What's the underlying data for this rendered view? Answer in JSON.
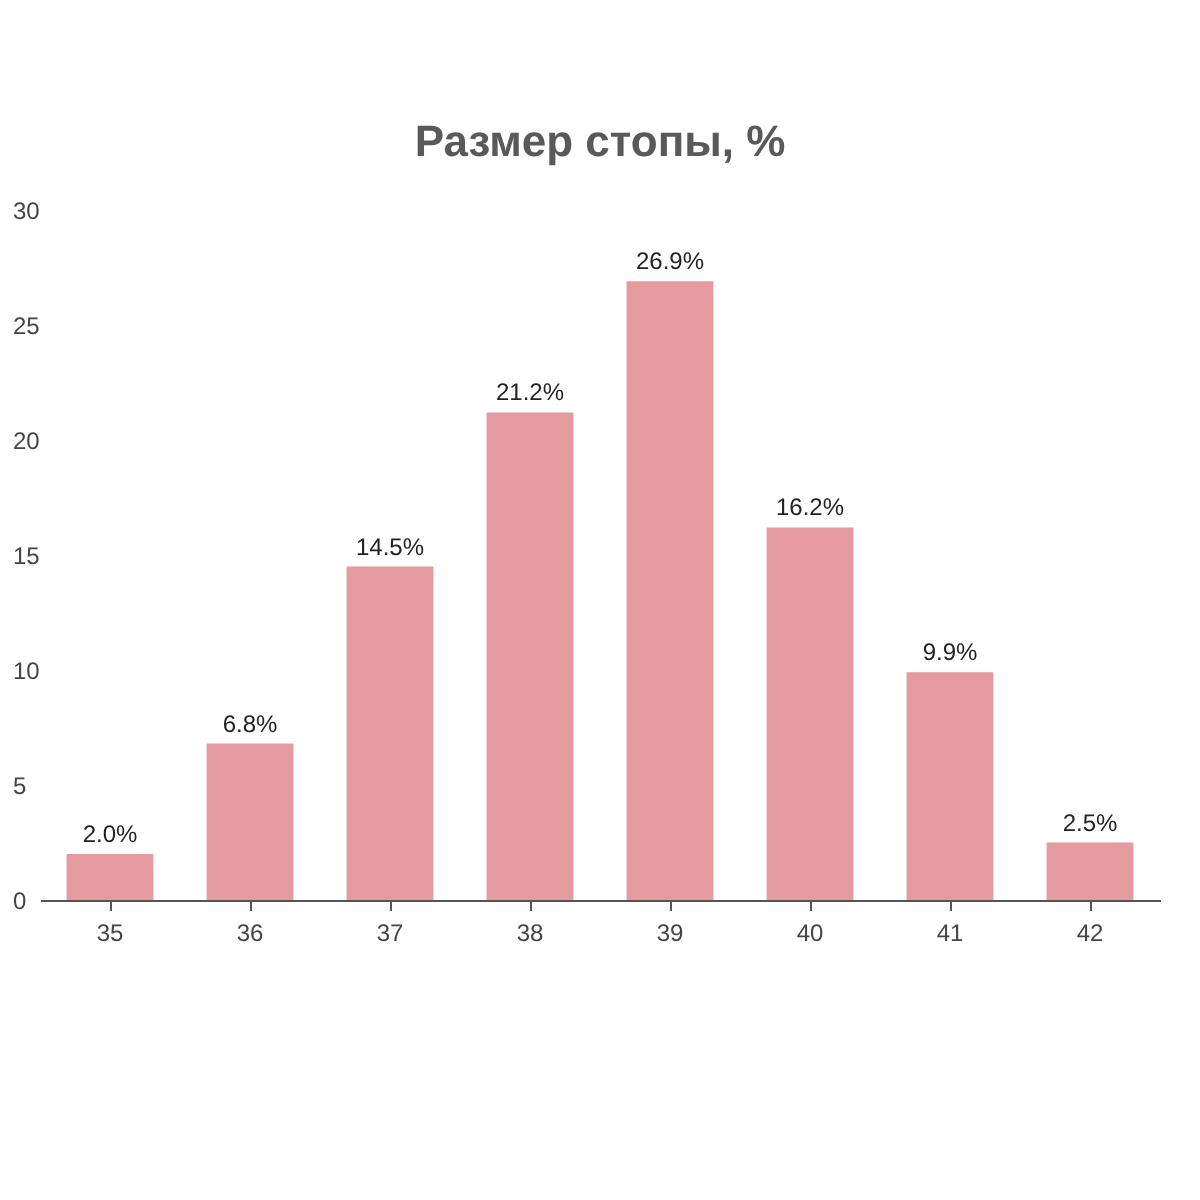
{
  "chart_data": {
    "type": "bar",
    "title": "Размер стопы, %",
    "categories": [
      "35",
      "36",
      "37",
      "38",
      "39",
      "40",
      "41",
      "42"
    ],
    "values": [
      2.0,
      6.8,
      14.5,
      21.2,
      26.9,
      16.2,
      9.9,
      2.5
    ],
    "value_labels": [
      "2.0%",
      "6.8%",
      "14.5%",
      "21.2%",
      "26.9%",
      "16.2%",
      "9.9%",
      "2.5%"
    ],
    "color": "#e49a9e",
    "ylim": [
      0,
      30
    ],
    "yticks": [
      0,
      5,
      10,
      15,
      20,
      25,
      30
    ],
    "grid": false
  }
}
